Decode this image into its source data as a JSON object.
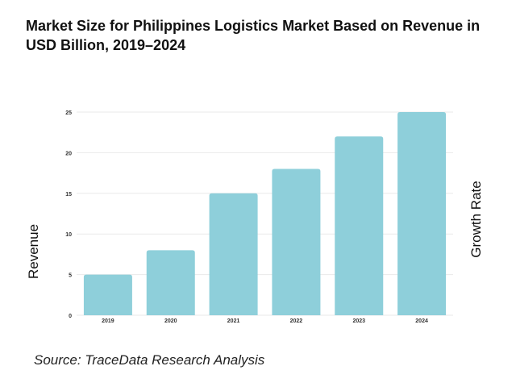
{
  "title": "Market Size for Philippines Logistics Market Based on Revenue in USD Billion, 2019–2024",
  "source": "Source: TraceData Research Analysis",
  "colors": {
    "bar": "#8ecfda",
    "grid": "#e9e9e9",
    "text": "#111111"
  },
  "chart_data": {
    "type": "bar",
    "title": "Market Size for Philippines Logistics Market Based on Revenue in USD Billion, 2019–2024",
    "categories": [
      "2019",
      "2020",
      "2021",
      "2022",
      "2023",
      "2024"
    ],
    "values": [
      5,
      8,
      15,
      18,
      22,
      25
    ],
    "ylabel": "Revenue",
    "y2label": "Growth Rate",
    "xlabel": "",
    "ylim": [
      0,
      25
    ],
    "yticks": [
      0,
      5,
      10,
      15,
      20,
      25
    ],
    "grid": true,
    "legend": "none"
  }
}
